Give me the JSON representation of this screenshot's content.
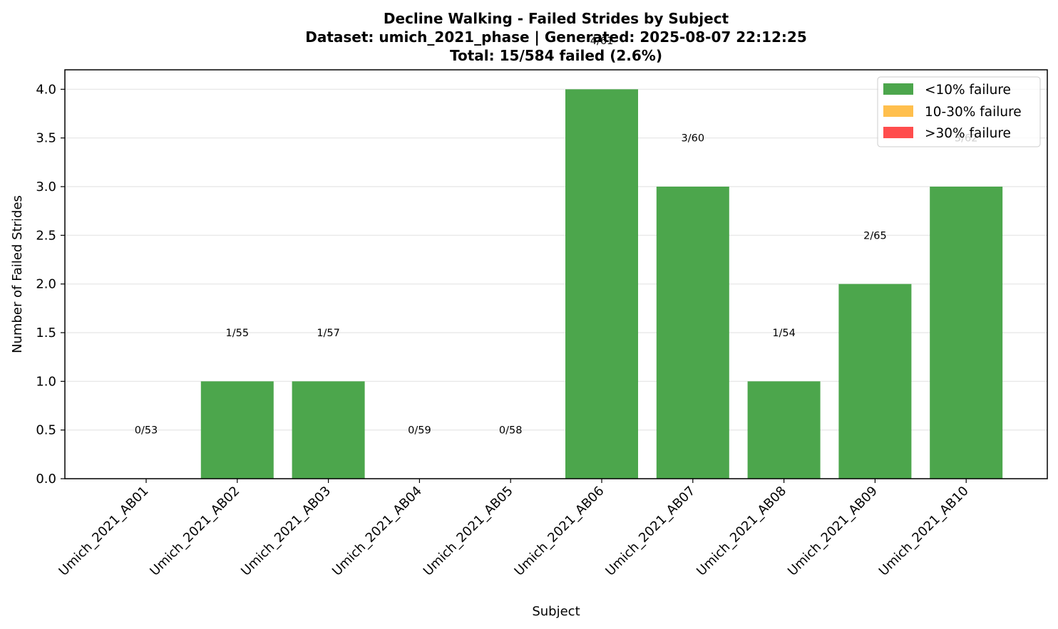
{
  "chart_data": {
    "type": "bar",
    "title_lines": [
      "Decline Walking - Failed Strides by Subject",
      "Dataset: umich_2021_phase | Generated: 2025-08-07 22:12:25",
      "Total: 15/584 failed (2.6%)"
    ],
    "xlabel": "Subject",
    "ylabel": "Number of Failed Strides",
    "categories": [
      "Umich_2021_AB01",
      "Umich_2021_AB02",
      "Umich_2021_AB03",
      "Umich_2021_AB04",
      "Umich_2021_AB05",
      "Umich_2021_AB06",
      "Umich_2021_AB07",
      "Umich_2021_AB08",
      "Umich_2021_AB09",
      "Umich_2021_AB10"
    ],
    "values": [
      0,
      1,
      1,
      0,
      0,
      4,
      3,
      1,
      2,
      3
    ],
    "bar_labels": [
      "0/53",
      "1/55",
      "1/57",
      "0/59",
      "0/58",
      "4/61",
      "3/60",
      "1/54",
      "2/65",
      "3/62"
    ],
    "ylim": [
      0,
      4.2
    ],
    "yticks": [
      0.0,
      0.5,
      1.0,
      1.5,
      2.0,
      2.5,
      3.0,
      3.5,
      4.0
    ],
    "ytick_labels": [
      "0.0",
      "0.5",
      "1.0",
      "1.5",
      "2.0",
      "2.5",
      "3.0",
      "3.5",
      "4.0"
    ],
    "grid": "y",
    "bar_color": "#4ca64c",
    "legend": {
      "placement": "top-right",
      "entries": [
        {
          "label": "<10% failure",
          "color": "#4ca64c"
        },
        {
          "label": "10-30% failure",
          "color": "#ffbf4d"
        },
        {
          "label": ">30% failure",
          "color": "#ff4d4d"
        }
      ]
    }
  }
}
